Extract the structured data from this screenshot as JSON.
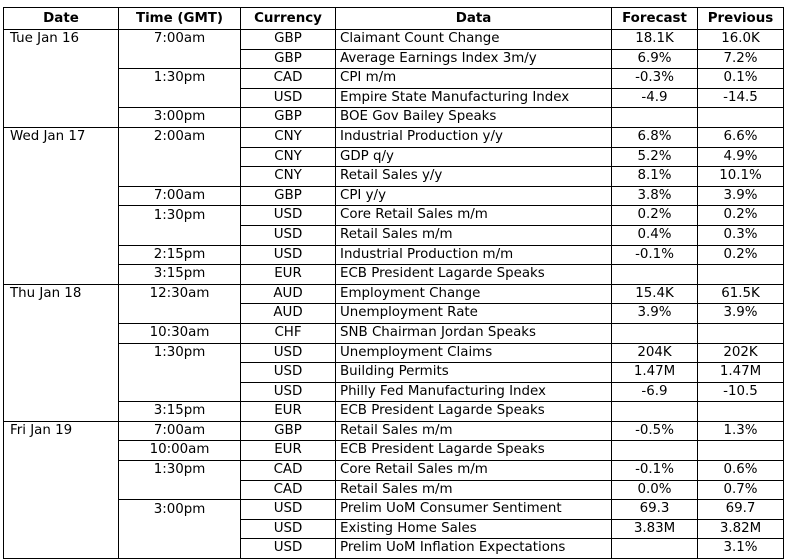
{
  "headers": [
    "Date",
    "Time (GMT)",
    "Currency",
    "Data",
    "Forecast",
    "Previous"
  ],
  "days": [
    {
      "date": "Tue Jan 16",
      "rows": [
        {
          "time": "7:00am",
          "currency": "GBP",
          "data": "Claimant Count Change",
          "forecast": "18.1K",
          "previous": "16.0K"
        },
        {
          "time": "",
          "currency": "GBP",
          "data": "Average Earnings Index 3m/y",
          "forecast": "6.9%",
          "previous": "7.2%"
        },
        {
          "time": "1:30pm",
          "currency": "CAD",
          "data": "CPI m/m",
          "forecast": "-0.3%",
          "previous": "0.1%"
        },
        {
          "time": "",
          "currency": "USD",
          "data": "Empire State Manufacturing Index",
          "forecast": "-4.9",
          "previous": "-14.5"
        },
        {
          "time": "3:00pm",
          "currency": "GBP",
          "data": "BOE Gov Bailey Speaks",
          "forecast": "",
          "previous": ""
        }
      ]
    },
    {
      "date": "Wed Jan 17",
      "rows": [
        {
          "time": "2:00am",
          "currency": "CNY",
          "data": "Industrial Production y/y",
          "forecast": "6.8%",
          "previous": "6.6%"
        },
        {
          "time": "",
          "currency": "CNY",
          "data": "GDP q/y",
          "forecast": "5.2%",
          "previous": "4.9%"
        },
        {
          "time": "",
          "currency": "CNY",
          "data": "Retail Sales y/y",
          "forecast": "8.1%",
          "previous": "10.1%"
        },
        {
          "time": "7:00am",
          "currency": "GBP",
          "data": "CPI y/y",
          "forecast": "3.8%",
          "previous": "3.9%"
        },
        {
          "time": "1:30pm",
          "currency": "USD",
          "data": "Core Retail Sales m/m",
          "forecast": "0.2%",
          "previous": "0.2%"
        },
        {
          "time": "",
          "currency": "USD",
          "data": "Retail Sales m/m",
          "forecast": "0.4%",
          "previous": "0.3%"
        },
        {
          "time": "2:15pm",
          "currency": "USD",
          "data": "Industrial Production m/m",
          "forecast": "-0.1%",
          "previous": "0.2%"
        },
        {
          "time": "3:15pm",
          "currency": "EUR",
          "data": "ECB President Lagarde Speaks",
          "forecast": "",
          "previous": ""
        }
      ]
    },
    {
      "date": "Thu Jan 18",
      "rows": [
        {
          "time": "12:30am",
          "currency": "AUD",
          "data": "Employment Change",
          "forecast": "15.4K",
          "previous": "61.5K"
        },
        {
          "time": "",
          "currency": "AUD",
          "data": "Unemployment Rate",
          "forecast": "3.9%",
          "previous": "3.9%"
        },
        {
          "time": "10:30am",
          "currency": "CHF",
          "data": "SNB Chairman Jordan Speaks",
          "forecast": "",
          "previous": ""
        },
        {
          "time": "1:30pm",
          "currency": "USD",
          "data": "Unemployment Claims",
          "forecast": "204K",
          "previous": "202K"
        },
        {
          "time": "",
          "currency": "USD",
          "data": "Building Permits",
          "forecast": "1.47M",
          "previous": "1.47M"
        },
        {
          "time": "",
          "currency": "USD",
          "data": "Philly Fed Manufacturing Index",
          "forecast": "-6.9",
          "previous": "-10.5"
        },
        {
          "time": "3:15pm",
          "currency": "EUR",
          "data": "ECB President Lagarde Speaks",
          "forecast": "",
          "previous": ""
        }
      ]
    },
    {
      "date": "Fri Jan 19",
      "rows": [
        {
          "time": "7:00am",
          "currency": "GBP",
          "data": "Retail Sales m/m",
          "forecast": "-0.5%",
          "previous": "1.3%"
        },
        {
          "time": "10:00am",
          "currency": "EUR",
          "data": "ECB President Lagarde Speaks",
          "forecast": "",
          "previous": ""
        },
        {
          "time": "1:30pm",
          "currency": "CAD",
          "data": "Core Retail Sales m/m",
          "forecast": "-0.1%",
          "previous": "0.6%"
        },
        {
          "time": "",
          "currency": "CAD",
          "data": "Retail Sales m/m",
          "forecast": "0.0%",
          "previous": "0.7%"
        },
        {
          "time": "3:00pm",
          "currency": "USD",
          "data": "Prelim UoM Consumer Sentiment",
          "forecast": "69.3",
          "previous": "69.7"
        },
        {
          "time": "",
          "currency": "USD",
          "data": "Existing Home Sales",
          "forecast": "3.83M",
          "previous": "3.82M"
        },
        {
          "time": "",
          "currency": "USD",
          "data": "Prelim UoM Inflation Expectations",
          "forecast": "",
          "previous": "3.1%"
        }
      ]
    }
  ]
}
